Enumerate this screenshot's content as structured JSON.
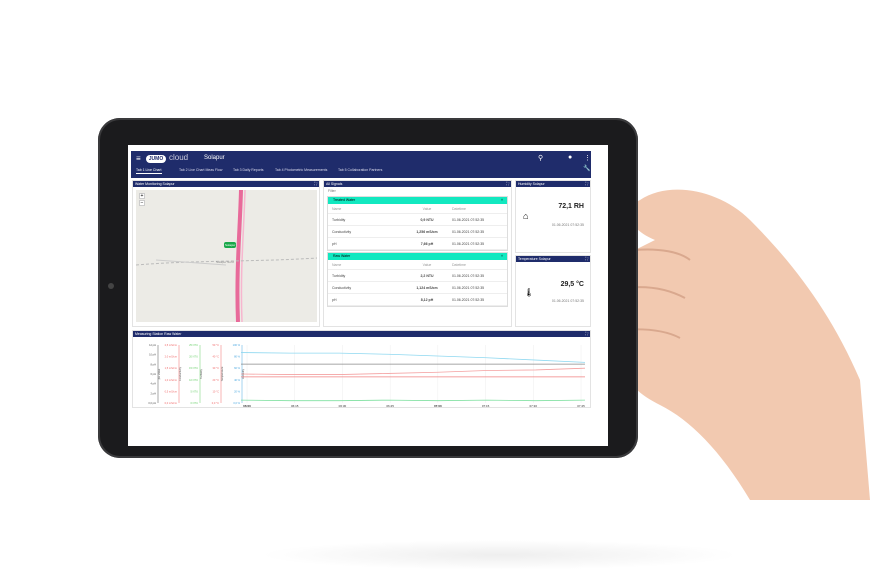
{
  "nav": {
    "menu_icon": "hamburger-icon",
    "logo": "JUMO",
    "logo_cloud": "cloud",
    "site": "Solapur",
    "icons": [
      "search-icon",
      "info-icon",
      "more-vert-icon",
      "wrench-icon"
    ]
  },
  "tabs": [
    {
      "label": "Tab 1 Live Chart",
      "active": true
    },
    {
      "label": "Tab 2 Live Chart Meas Flow"
    },
    {
      "label": "Tab 3 Daily Reports"
    },
    {
      "label": "Tab 4 Photometric Measurements"
    },
    {
      "label": "Tab 5 Collaboration Partners"
    }
  ],
  "map_panel": {
    "title": "Water Monitoring Solapur",
    "zoom_in": "+",
    "zoom_out": "−",
    "marker": "Solapur",
    "place_label": "Solapur Nord"
  },
  "signals": {
    "title": "All Signals",
    "filter_placeholder": "Filter",
    "columns": [
      "Name",
      "Value",
      "Datetime"
    ],
    "groups": [
      {
        "name": "Treated Water",
        "rows": [
          [
            "Turbidity",
            "0,9 NTU",
            "01.06.2021 07:52:35"
          ],
          [
            "Conductivity",
            "1,256 mS/cm",
            "01.06.2021 07:52:35"
          ],
          [
            "pH",
            "7,66 pH",
            "01.06.2021 07:52:35"
          ]
        ]
      },
      {
        "name": "Raw Water",
        "rows": [
          [
            "Turbidity",
            "2,2 NTU",
            "01.06.2021 07:52:35"
          ],
          [
            "Conductivity",
            "1,124 mS/cm",
            "01.06.2021 07:52:35"
          ],
          [
            "pH",
            "8,12 pH",
            "01.06.2021 07:52:35"
          ]
        ]
      }
    ]
  },
  "humidity": {
    "title": "Humidity Solapur",
    "value": "72,1 RH",
    "time": "01.06.2021 07:52:35",
    "icon": "house-humidity-icon"
  },
  "temperature": {
    "title": "Temperature Solapur",
    "value": "29,5 °C",
    "time": "01.06.2021 07:52:35",
    "icon": "thermometer-icon"
  },
  "chart_data": {
    "type": "line",
    "title": "Measuring Station Raw Water",
    "x": [
      "06:00",
      "06:15",
      "06:30",
      "06:45",
      "07:00",
      "07:15",
      "07:30",
      "07:45"
    ],
    "axes": [
      {
        "label": "pH Value",
        "color": "#555555",
        "ticks": [
          "12 pH",
          "10 pH",
          "8 pH",
          "6 pH",
          "4 pH",
          "2 pH",
          "0,0 pH"
        ]
      },
      {
        "label": "Conductivity",
        "color": "#f06a6a",
        "ticks": [
          "2,5 mS/cm",
          "2,0 mS/cm",
          "1,5 mS/cm",
          "1,0 mS/cm",
          "0,5 mS/cm",
          "0,0 mS/cm"
        ]
      },
      {
        "label": "Turbidity",
        "color": "#6cd06c",
        "ticks": [
          "25 NTU",
          "20 NTU",
          "15 NTU",
          "10 NTU",
          "5 NTU",
          "0 NTU"
        ]
      },
      {
        "label": "Temperature",
        "color": "#f06a6a",
        "ticks": [
          "50 °C",
          "40 °C",
          "30 °C",
          "20 °C",
          "10 °C",
          "0,0 °C"
        ]
      },
      {
        "label": "Humidity",
        "color": "#4aa8e0",
        "ticks": [
          "100 %",
          "80 %",
          "60 %",
          "40 %",
          "20 %",
          "0,0 %"
        ]
      }
    ],
    "series": [
      {
        "color": "#8fd8f0",
        "values": [
          87,
          86,
          86,
          84,
          81,
          78,
          74,
          70
        ]
      },
      {
        "color": "#888888",
        "values": [
          67,
          67,
          67,
          67,
          67,
          67,
          67,
          67
        ]
      },
      {
        "color": "#f4a0a0",
        "values": [
          50,
          49,
          49,
          51,
          53,
          56,
          57,
          60
        ]
      },
      {
        "color": "#f08080",
        "values": [
          45,
          45,
          45,
          45,
          45,
          45,
          45,
          45
        ]
      },
      {
        "color": "#7fe0a0",
        "values": [
          5,
          4,
          4,
          5,
          4,
          5,
          4,
          5
        ]
      }
    ],
    "ylim": [
      0,
      100
    ]
  }
}
